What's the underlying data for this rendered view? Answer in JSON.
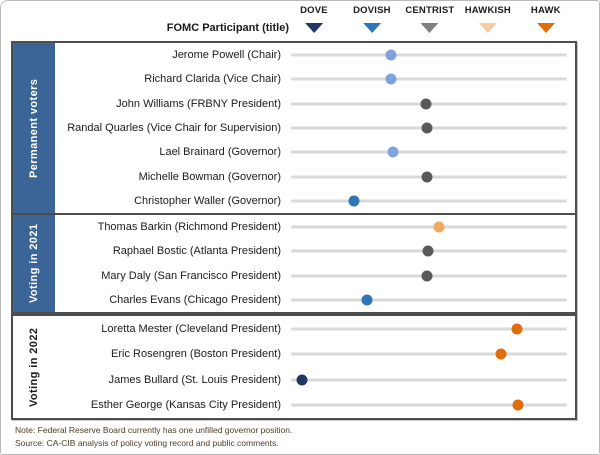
{
  "header": {
    "participant_col_label": "FOMC Participant (title)"
  },
  "legend": {
    "items": [
      {
        "label": "DOVE",
        "color": "#1F3864"
      },
      {
        "label": "DOVISH",
        "color": "#2E75B6"
      },
      {
        "label": "CENTRIST",
        "color": "#808080"
      },
      {
        "label": "HAWKISH",
        "color": "#F6C9A2"
      },
      {
        "label": "HAWK",
        "color": "#E36C0A"
      }
    ]
  },
  "notes": {
    "line1": "Note: Federal Reserve Board currently has one unfilled  governor position.",
    "line2": "Source: CA-CIB analysis of policy voting record and public comments."
  },
  "chart_data": {
    "type": "scatter",
    "subtype": "horizontal-dot-plot",
    "scale": {
      "tick_labels": [
        "DOVE",
        "DOVISH",
        "CENTRIST",
        "HAWKISH",
        "HAWK"
      ],
      "tick_values": [
        0,
        1,
        2,
        3,
        4
      ],
      "description": "dove-hawk policy stance, 0 = dove, 4 = hawk"
    },
    "track_color": "#D9D9D9",
    "groups": [
      {
        "label": "Permanent voters",
        "label_bg": "#3B6596",
        "label_color": "#FFFFFF",
        "rows": [
          {
            "name": "Jerome Powell (Chair)",
            "score": 1.36,
            "dot_color": "#7FA3DC"
          },
          {
            "name": "Richard Clarida (Vice Chair)",
            "score": 1.36,
            "dot_color": "#7FA3DC"
          },
          {
            "name": "John Williams (FRBNY President)",
            "score": 1.97,
            "dot_color": "#595959"
          },
          {
            "name": "Randal Quarles (Vice Chair for Supervision)",
            "score": 1.99,
            "dot_color": "#595959"
          },
          {
            "name": "Lael Brainard (Governor)",
            "score": 1.4,
            "dot_color": "#7FA3DC"
          },
          {
            "name": "Michelle Bowman (Governor)",
            "score": 1.99,
            "dot_color": "#595959"
          },
          {
            "name": "Christopher Waller (Governor)",
            "score": 0.72,
            "dot_color": "#2E75B6"
          }
        ]
      },
      {
        "label": "Voting in 2021",
        "label_bg": "#3B6596",
        "label_color": "#FFFFFF",
        "rows": [
          {
            "name": "Thomas Barkin (Richmond President)",
            "score": 2.19,
            "dot_color": "#F0A860"
          },
          {
            "name": "Raphael Bostic (Atlanta President)",
            "score": 2.0,
            "dot_color": "#595959"
          },
          {
            "name": "Mary Daly (San Francisco President)",
            "score": 1.99,
            "dot_color": "#595959"
          },
          {
            "name": "Charles Evans (Chicago President)",
            "score": 0.95,
            "dot_color": "#2E75B6"
          }
        ]
      },
      {
        "label": "Voting in 2022",
        "label_bg": "#FFFFFF",
        "label_color": "#1A1A1A",
        "rows": [
          {
            "name": "Loretta Mester (Cleveland President)",
            "score": 3.54,
            "dot_color": "#E36C0A"
          },
          {
            "name": "Eric Rosengren (Boston President)",
            "score": 3.26,
            "dot_color": "#E36C0A"
          },
          {
            "name": "James Bullard (St. Louis President)",
            "score": -0.17,
            "dot_color": "#1F3864"
          },
          {
            "name": "Esther George (Kansas City President)",
            "score": 3.55,
            "dot_color": "#E36C0A"
          }
        ]
      }
    ]
  }
}
